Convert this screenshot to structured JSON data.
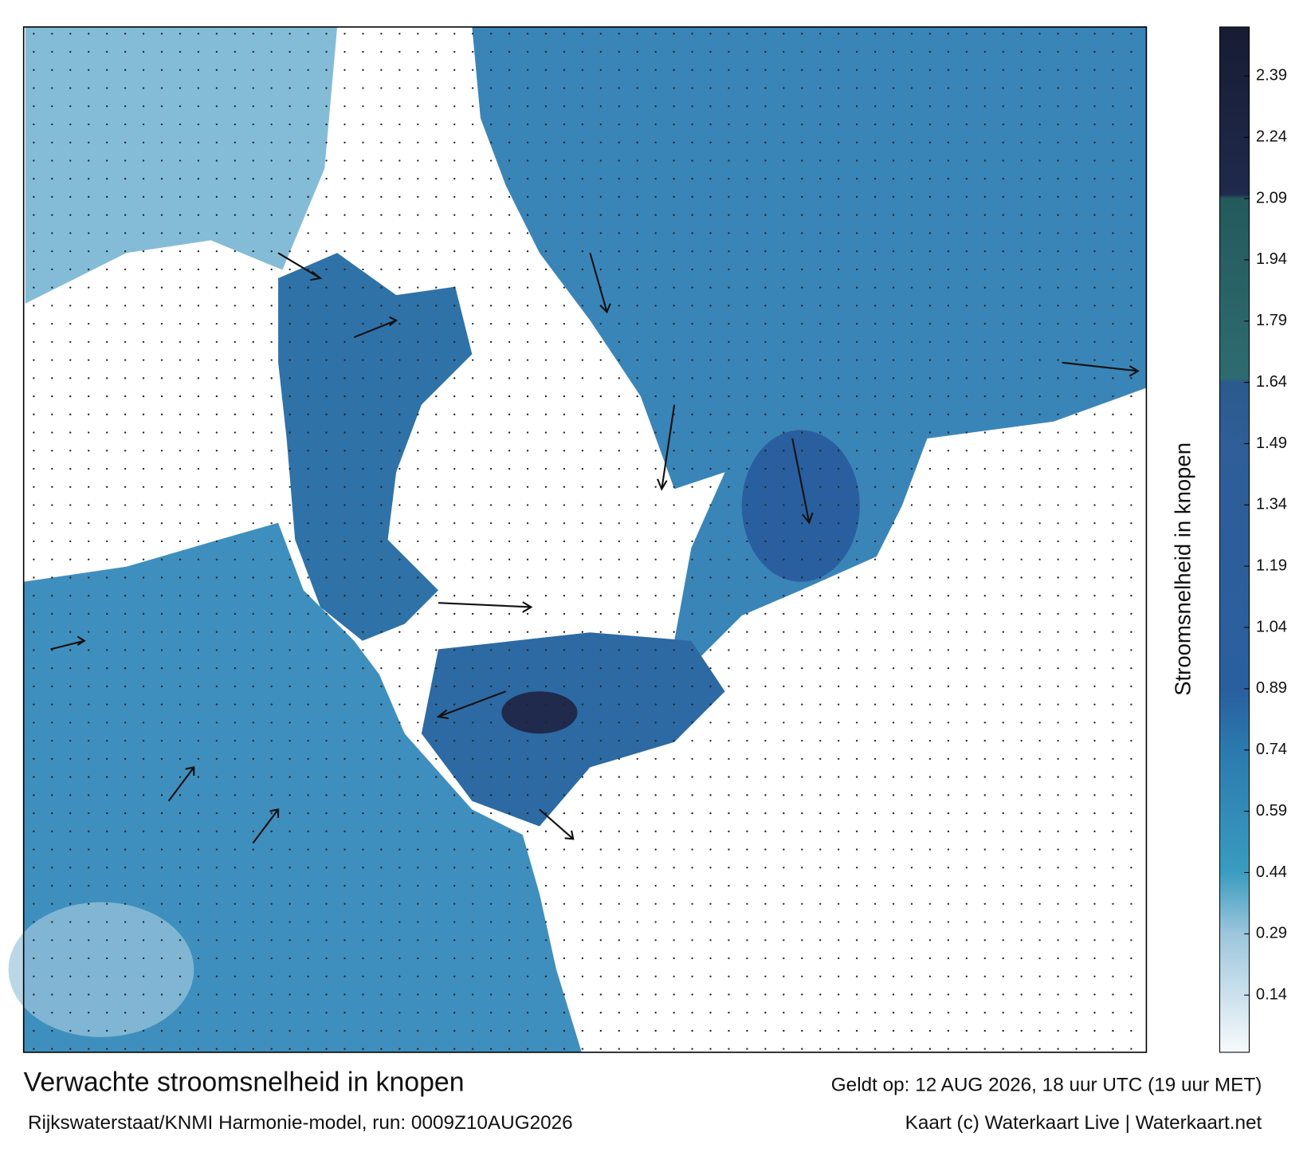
{
  "map": {
    "colorbar": {
      "label": "Stroomsnelheid in knopen",
      "lim": [
        0,
        2.51
      ],
      "ticks": [
        0.14,
        0.29,
        0.44,
        0.59,
        0.74,
        0.89,
        1.04,
        1.19,
        1.34,
        1.49,
        1.64,
        1.79,
        1.94,
        2.09,
        2.24,
        2.39
      ],
      "stops": [
        {
          "value": 0,
          "color": "#f7fafc"
        },
        {
          "value": 0.29,
          "color": "#9cc6dc"
        },
        {
          "value": 0.44,
          "color": "#3a9cc0"
        },
        {
          "value": 0.74,
          "color": "#2b7aae"
        },
        {
          "value": 0.89,
          "color": "#2a5f9f"
        },
        {
          "value": 1.49,
          "color": "#2f5e98"
        },
        {
          "value": 1.64,
          "color": "#2b5a8c"
        },
        {
          "value": 1.65,
          "color": "#2e6b70"
        },
        {
          "value": 2.09,
          "color": "#245a5c"
        },
        {
          "value": 2.1,
          "color": "#1f2a4c"
        },
        {
          "value": 2.51,
          "color": "#181c34"
        }
      ]
    },
    "footer": {
      "title": "Verwachte stroomsnelheid in knopen",
      "valid": "Geldt op: 12 AUG 2026, 18 uur UTC (19 uur MET)",
      "model": "Rijkswaterstaat/KNMI Harmonie-model, run: 0009Z10AUG2026",
      "credit": "Kaart (c) Waterkaart Live | Waterkaart.net"
    }
  }
}
